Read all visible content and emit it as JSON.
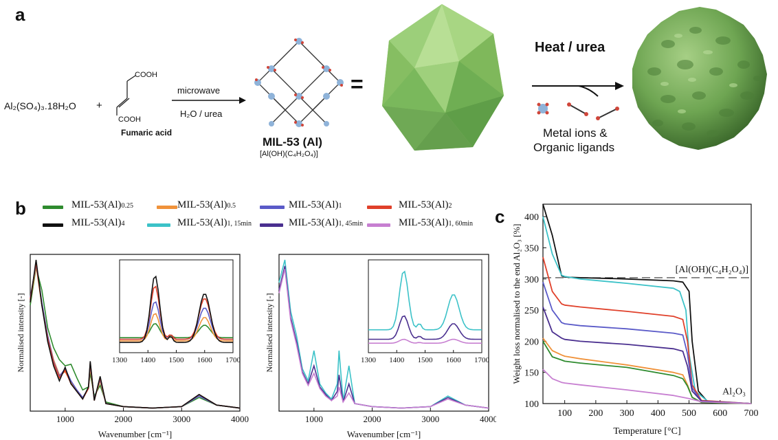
{
  "panel_a": {
    "letter": "a",
    "reactant_1": "Al₂(SO₄)₃.18H₂O",
    "plus": "+",
    "reactant_2_top_group": "COOH",
    "reactant_2_bottom_group": "COOH",
    "reactant_2_name": "Fumaric acid",
    "arrow_top_label": "microwave",
    "arrow_bottom_label": "H₂O / urea",
    "product_name": "MIL-53 (Al)",
    "product_formula": "[Al(OH)(C₄H₂O₄)]",
    "equals": "=",
    "heat_label": "Heat / urea",
    "release_label_1": "Metal ions &",
    "release_label_2": "Organic ligands"
  },
  "panel_b": {
    "letter": "b",
    "legend": [
      {
        "label": "MIL-53(Al)",
        "sub": "0.25",
        "color": "#2e8b2e"
      },
      {
        "label": "MIL-53(Al)",
        "sub": "0.5",
        "color": "#f0923a"
      },
      {
        "label": "MIL-53(Al)",
        "sub": "1",
        "color": "#5a5ac8"
      },
      {
        "label": "MIL-53(Al)",
        "sub": "2",
        "color": "#e0402a"
      },
      {
        "label": "MIL-53(Al)",
        "sub": "4",
        "color": "#111111"
      },
      {
        "label": "MIL-53(Al)",
        "sub": "1, 15min",
        "color": "#3cc2c8"
      },
      {
        "label": "MIL-53(Al)",
        "sub": "1, 45min",
        "color": "#4a2f8f"
      },
      {
        "label": "MIL-53(Al)",
        "sub": "1, 60min",
        "color": "#c77fd1"
      }
    ]
  },
  "panel_c": {
    "letter": "c"
  },
  "chart_data": [
    {
      "type": "line",
      "xlabel": "Wavenumber [cm⁻¹]",
      "ylabel": "Normalised intensity [-]",
      "xlim": [
        400,
        4000
      ],
      "x_ticks": [
        "1000",
        "2000",
        "3000",
        "4000"
      ],
      "series": [
        {
          "name": "MIL-53(Al)0.25",
          "color": "#2e8b2e",
          "x": [
            400,
            500,
            600,
            700,
            800,
            900,
            1000,
            1100,
            1200,
            1300,
            1400,
            1430,
            1500,
            1600,
            1700,
            2000,
            2500,
            3000,
            3300,
            3600,
            4000
          ],
          "y": [
            0.7,
            0.95,
            0.8,
            0.55,
            0.42,
            0.34,
            0.3,
            0.31,
            0.22,
            0.14,
            0.16,
            0.25,
            0.1,
            0.17,
            0.06,
            0.03,
            0.02,
            0.03,
            0.09,
            0.04,
            0.02
          ]
        },
        {
          "name": "MIL-53(Al)0.5",
          "color": "#f0923a",
          "x": [
            400,
            500,
            600,
            700,
            800,
            900,
            1000,
            1100,
            1200,
            1300,
            1400,
            1430,
            1500,
            1600,
            1700,
            2000,
            2500,
            3000,
            3300,
            3600,
            4000
          ],
          "y": [
            0.72,
            0.96,
            0.7,
            0.5,
            0.34,
            0.24,
            0.26,
            0.19,
            0.14,
            0.09,
            0.15,
            0.29,
            0.08,
            0.2,
            0.05,
            0.03,
            0.02,
            0.03,
            0.1,
            0.04,
            0.02
          ]
        },
        {
          "name": "MIL-53(Al)1",
          "color": "#5a5ac8",
          "x": [
            400,
            500,
            600,
            700,
            800,
            900,
            1000,
            1100,
            1200,
            1300,
            1400,
            1430,
            1500,
            1600,
            1700,
            2000,
            2500,
            3000,
            3300,
            3600,
            4000
          ],
          "y": [
            0.75,
            0.97,
            0.72,
            0.5,
            0.33,
            0.23,
            0.28,
            0.2,
            0.14,
            0.09,
            0.15,
            0.31,
            0.08,
            0.21,
            0.05,
            0.03,
            0.02,
            0.03,
            0.1,
            0.04,
            0.02
          ]
        },
        {
          "name": "MIL-53(Al)2",
          "color": "#e0402a",
          "x": [
            400,
            500,
            600,
            700,
            800,
            900,
            1000,
            1100,
            1200,
            1300,
            1400,
            1430,
            1500,
            1600,
            1700,
            2000,
            2500,
            3000,
            3300,
            3600,
            4000
          ],
          "y": [
            0.74,
            0.98,
            0.7,
            0.48,
            0.32,
            0.22,
            0.27,
            0.18,
            0.13,
            0.08,
            0.15,
            0.32,
            0.07,
            0.22,
            0.05,
            0.03,
            0.02,
            0.03,
            0.11,
            0.04,
            0.02
          ]
        },
        {
          "name": "MIL-53(Al)4",
          "color": "#111111",
          "x": [
            400,
            500,
            600,
            700,
            800,
            900,
            1000,
            1100,
            1200,
            1300,
            1400,
            1430,
            1500,
            1600,
            1700,
            2000,
            2500,
            3000,
            3300,
            3600,
            4000
          ],
          "y": [
            0.72,
            1.0,
            0.7,
            0.46,
            0.3,
            0.2,
            0.29,
            0.18,
            0.13,
            0.08,
            0.16,
            0.33,
            0.07,
            0.23,
            0.05,
            0.03,
            0.02,
            0.03,
            0.11,
            0.04,
            0.02
          ]
        }
      ]
    },
    {
      "type": "line",
      "xlabel": "Wavenumber [cm⁻¹]",
      "ylabel": "Normalised intensity [-]",
      "xlim": [
        400,
        4000
      ],
      "x_ticks": [
        "1000",
        "2000",
        "3000",
        "4000"
      ],
      "series": [
        {
          "name": "MIL-53(Al)1, 15min",
          "color": "#3cc2c8",
          "x": [
            400,
            500,
            600,
            700,
            800,
            900,
            1000,
            1100,
            1200,
            1300,
            1400,
            1430,
            1500,
            1600,
            1700,
            2000,
            2500,
            3000,
            3300,
            3600,
            4000
          ],
          "y": [
            0.85,
            1.0,
            0.66,
            0.5,
            0.28,
            0.2,
            0.4,
            0.18,
            0.12,
            0.08,
            0.18,
            0.4,
            0.07,
            0.3,
            0.05,
            0.03,
            0.02,
            0.03,
            0.1,
            0.04,
            0.02
          ]
        },
        {
          "name": "MIL-53(Al)1, 45min",
          "color": "#4a2f8f",
          "x": [
            400,
            500,
            600,
            700,
            800,
            900,
            1000,
            1100,
            1200,
            1300,
            1400,
            1430,
            1500,
            1600,
            1700,
            2000,
            2500,
            3000,
            3300,
            3600,
            4000
          ],
          "y": [
            0.8,
            0.96,
            0.62,
            0.46,
            0.26,
            0.18,
            0.3,
            0.16,
            0.11,
            0.07,
            0.13,
            0.24,
            0.06,
            0.18,
            0.05,
            0.03,
            0.02,
            0.03,
            0.09,
            0.04,
            0.02
          ]
        },
        {
          "name": "MIL-53(Al)1, 60min",
          "color": "#c77fd1",
          "x": [
            400,
            500,
            600,
            700,
            800,
            900,
            1000,
            1100,
            1200,
            1300,
            1400,
            1430,
            1500,
            1600,
            1700,
            2000,
            2500,
            3000,
            3300,
            3600,
            4000
          ],
          "y": [
            0.78,
            0.94,
            0.6,
            0.44,
            0.25,
            0.17,
            0.25,
            0.15,
            0.1,
            0.07,
            0.1,
            0.16,
            0.06,
            0.12,
            0.05,
            0.03,
            0.02,
            0.03,
            0.08,
            0.04,
            0.02
          ]
        }
      ]
    },
    {
      "type": "line",
      "xlabel": "Temperature [°C]",
      "ylabel": "Weight loss normalised to the end Al₂O₃ [%]",
      "xlim": [
        30,
        700
      ],
      "ylim": [
        100,
        420
      ],
      "x_ticks": [
        "100",
        "200",
        "300",
        "400",
        "500",
        "600",
        "700"
      ],
      "y_ticks": [
        "100",
        "150",
        "200",
        "250",
        "300",
        "350",
        "400"
      ],
      "annotations": [
        "[Al(OH)(C₄H₂O₄)]",
        "Al₂O₃"
      ],
      "reference_line_y": 302,
      "series": [
        {
          "name": "MIL-53(Al)4",
          "color": "#111111",
          "x": [
            30,
            60,
            90,
            100,
            150,
            300,
            450,
            480,
            500,
            510,
            530,
            560,
            700
          ],
          "y": [
            420,
            370,
            305,
            303,
            302,
            300,
            297,
            295,
            280,
            200,
            120,
            103,
            100
          ]
        },
        {
          "name": "MIL-53(Al)1, 15min",
          "color": "#3cc2c8",
          "x": [
            30,
            60,
            90,
            100,
            150,
            300,
            450,
            470,
            490,
            500,
            520,
            560,
            700
          ],
          "y": [
            400,
            340,
            306,
            304,
            300,
            293,
            285,
            280,
            250,
            180,
            120,
            104,
            100
          ]
        },
        {
          "name": "MIL-53(Al)2",
          "color": "#e0402a",
          "x": [
            30,
            60,
            90,
            100,
            150,
            300,
            450,
            480,
            495,
            510,
            540,
            700
          ],
          "y": [
            335,
            280,
            260,
            258,
            255,
            248,
            240,
            235,
            200,
            130,
            105,
            100
          ]
        },
        {
          "name": "MIL-53(Al)1",
          "color": "#5a5ac8",
          "x": [
            30,
            60,
            90,
            100,
            150,
            300,
            450,
            480,
            495,
            510,
            540,
            700
          ],
          "y": [
            295,
            250,
            230,
            228,
            225,
            220,
            213,
            210,
            180,
            125,
            104,
            100
          ]
        },
        {
          "name": "MIL-53(Al)1, 45min",
          "color": "#4a2f8f",
          "x": [
            30,
            60,
            90,
            100,
            150,
            300,
            450,
            480,
            495,
            510,
            540,
            700
          ],
          "y": [
            255,
            215,
            205,
            203,
            200,
            195,
            188,
            184,
            160,
            120,
            104,
            100
          ]
        },
        {
          "name": "MIL-53(Al)0.5",
          "color": "#f0923a",
          "x": [
            30,
            60,
            90,
            100,
            150,
            300,
            450,
            480,
            495,
            510,
            540,
            700
          ],
          "y": [
            205,
            185,
            178,
            176,
            172,
            162,
            150,
            146,
            130,
            110,
            102,
            100
          ]
        },
        {
          "name": "MIL-53(Al)0.25",
          "color": "#2e8b2e",
          "x": [
            30,
            60,
            90,
            100,
            150,
            300,
            450,
            480,
            495,
            510,
            540,
            700
          ],
          "y": [
            200,
            175,
            170,
            168,
            165,
            158,
            145,
            140,
            128,
            110,
            102,
            100
          ]
        },
        {
          "name": "MIL-53(Al)1, 60min",
          "color": "#c77fd1",
          "x": [
            30,
            60,
            90,
            100,
            150,
            300,
            450,
            500,
            540,
            700
          ],
          "y": [
            155,
            140,
            134,
            133,
            130,
            122,
            113,
            108,
            103,
            100
          ]
        }
      ]
    }
  ]
}
